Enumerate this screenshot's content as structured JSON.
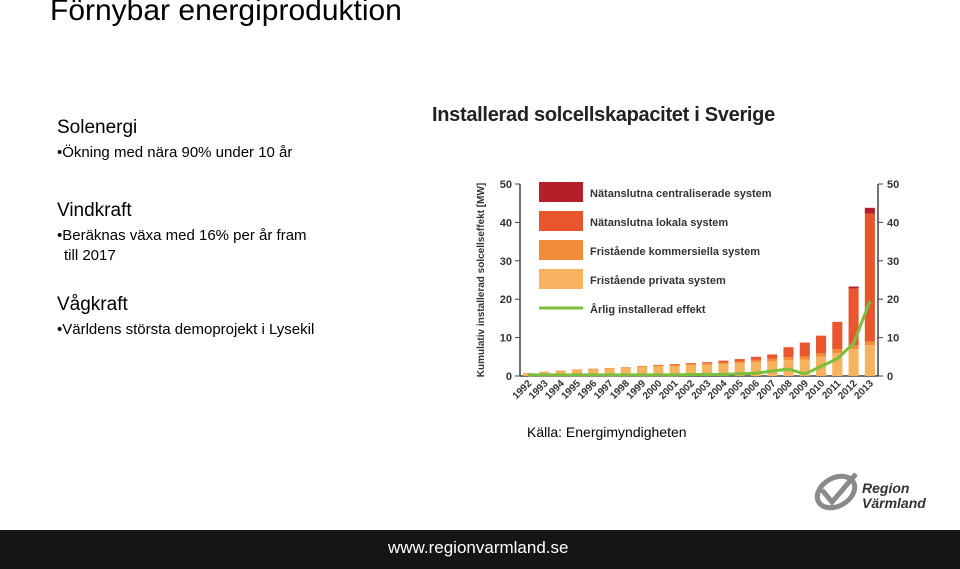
{
  "slide": {
    "title": "Förnybar energiproduktion",
    "sections": [
      {
        "heading": "Solenergi",
        "bullets": [
          "•Ökning med nära 90% under 10 år"
        ]
      },
      {
        "heading": "Vindkraft",
        "bullets": [
          "•Beräknas växa med 16% per år fram",
          "till 2017"
        ]
      },
      {
        "heading": "Vågkraft",
        "bullets": [
          "•Världens största demoprojekt i Lysekil"
        ]
      }
    ],
    "source": "Källa: Energimyndigheten",
    "logo_text": [
      "Region",
      "Värmland"
    ],
    "footer_url": "www.regionvarmland.se"
  },
  "colors": {
    "centraliserade": "#b3202a",
    "lokala": "#e9562d",
    "kommersiella": "#f08c3a",
    "privata": "#f6b25e",
    "linje": "#7bbf3a",
    "footer": "#151515"
  },
  "chart_data": {
    "type": "bar",
    "title": "Installerad solcellskapacitet i Sverige",
    "ylabel": "Kumulativ installerad solcellseffekt [MW]",
    "ylim": [
      0,
      50
    ],
    "yticks": [
      0,
      10,
      20,
      30,
      40,
      50
    ],
    "stacked": true,
    "grid": false,
    "legend_position": "top-left",
    "categories": [
      "1992",
      "1993",
      "1994",
      "1995",
      "1996",
      "1997",
      "1998",
      "1999",
      "2000",
      "2001",
      "2002",
      "2003",
      "2004",
      "2005",
      "2006",
      "2007",
      "2008",
      "2009",
      "2010",
      "2011",
      "2012",
      "2013"
    ],
    "series": [
      {
        "name": "Fristående privata system",
        "type": "bar",
        "values": [
          0.8,
          1.0,
          1.3,
          1.5,
          1.7,
          1.9,
          2.1,
          2.3,
          2.5,
          2.6,
          2.8,
          2.9,
          3.1,
          3.3,
          3.6,
          3.8,
          4.1,
          4.3,
          5.0,
          6.0,
          7.0,
          8.0
        ]
      },
      {
        "name": "Fristående kommersiella system",
        "type": "bar",
        "values": [
          0.0,
          0.1,
          0.1,
          0.2,
          0.2,
          0.2,
          0.2,
          0.3,
          0.3,
          0.3,
          0.4,
          0.4,
          0.4,
          0.5,
          0.6,
          0.7,
          0.8,
          0.8,
          0.9,
          1.0,
          1.0,
          1.0
        ]
      },
      {
        "name": "Nätanslutna lokala system",
        "type": "bar",
        "values": [
          0.0,
          0.0,
          0.0,
          0.0,
          0.0,
          0.0,
          0.0,
          0.0,
          0.1,
          0.2,
          0.2,
          0.3,
          0.5,
          0.6,
          0.8,
          1.1,
          2.6,
          3.6,
          4.6,
          7.1,
          14.8,
          33.3
        ]
      },
      {
        "name": "Nätanslutna centraliserade system",
        "type": "bar",
        "values": [
          0.0,
          0.0,
          0.0,
          0.0,
          0.0,
          0.0,
          0.0,
          0.0,
          0.0,
          0.0,
          0.0,
          0.0,
          0.0,
          0.0,
          0.0,
          0.0,
          0.0,
          0.0,
          0.0,
          0.0,
          0.5,
          1.5
        ]
      },
      {
        "name": "Årlig installerad effekt",
        "type": "line",
        "values": [
          0.3,
          0.3,
          0.3,
          0.3,
          0.3,
          0.3,
          0.3,
          0.3,
          0.3,
          0.3,
          0.4,
          0.4,
          0.4,
          0.6,
          0.7,
          1.3,
          1.8,
          0.5,
          2.5,
          4.5,
          8.5,
          19.5
        ]
      }
    ]
  }
}
